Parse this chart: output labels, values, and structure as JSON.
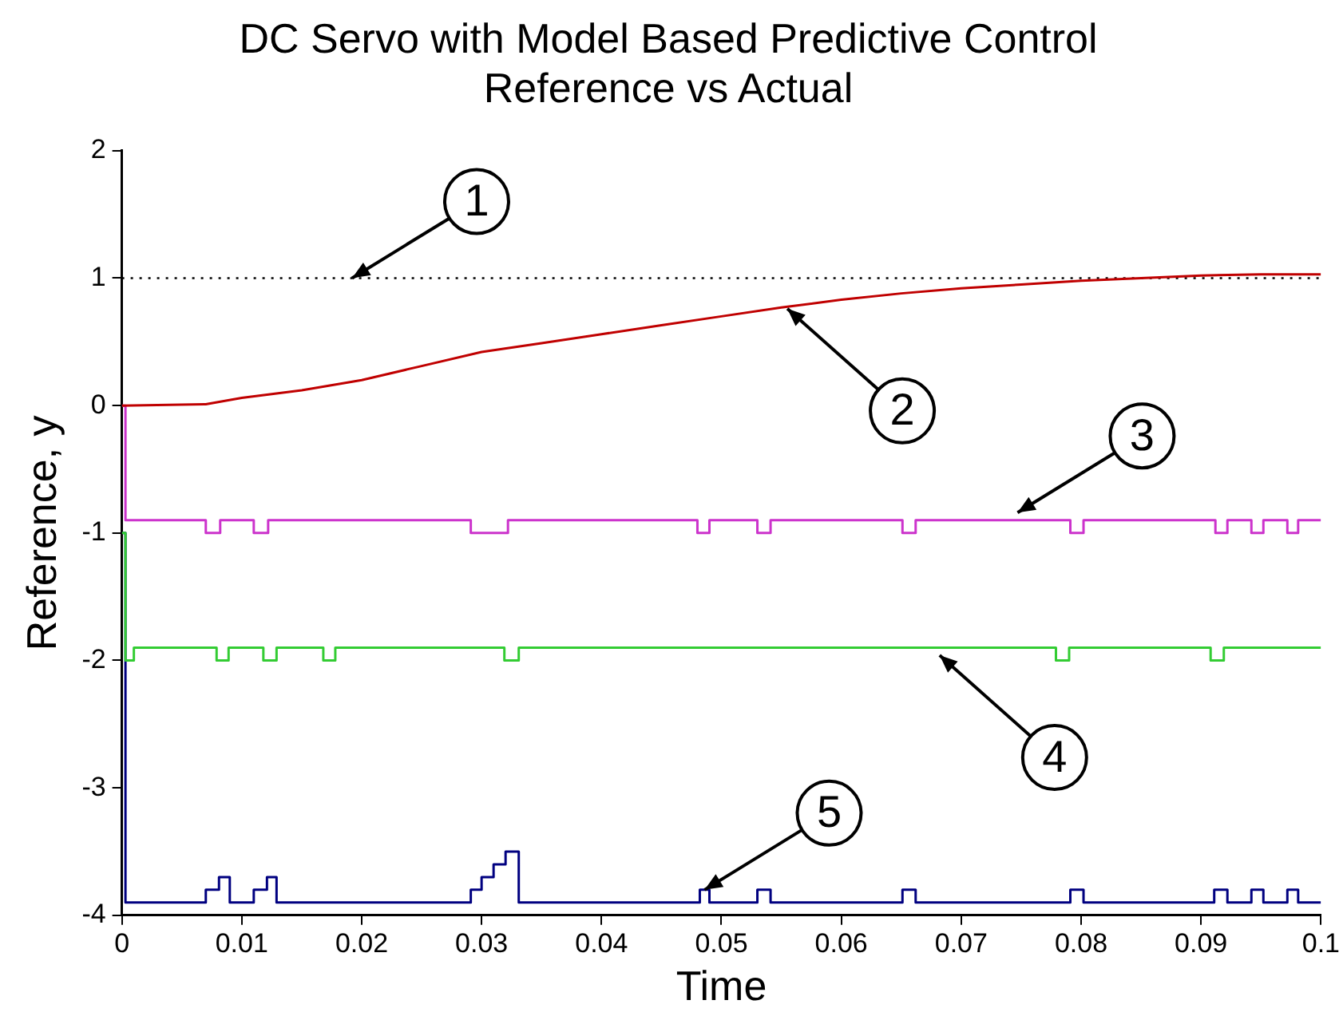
{
  "chart_data": {
    "type": "line",
    "title": "DC Servo with Model Based Predictive Control",
    "subtitle": "Reference vs Actual",
    "xlabel": "Time",
    "ylabel": "Reference, y",
    "xlim": [
      0,
      0.1
    ],
    "xticks": [
      0,
      0.01,
      0.02,
      0.03,
      0.04,
      0.05,
      0.06,
      0.07,
      0.08,
      0.09,
      0.1
    ],
    "ylim": [
      -4,
      2
    ],
    "yticks": [
      -4,
      -3,
      -2,
      -1,
      0,
      1,
      2
    ],
    "grid": false,
    "legend": false,
    "ref_lines": [
      {
        "axis": "y",
        "value": 1,
        "color": "#000000",
        "line_style": "dotted"
      }
    ],
    "series": [
      {
        "color": "#c00000",
        "x": [
          0,
          0.007,
          0.01,
          0.015,
          0.02,
          0.025,
          0.03,
          0.035,
          0.04,
          0.045,
          0.05,
          0.055,
          0.06,
          0.065,
          0.07,
          0.075,
          0.08,
          0.085,
          0.09,
          0.095,
          0.1
        ],
        "values": [
          0,
          0.01,
          0.06,
          0.12,
          0.2,
          0.31,
          0.42,
          0.49,
          0.56,
          0.63,
          0.7,
          0.77,
          0.83,
          0.88,
          0.92,
          0.95,
          0.98,
          1.0,
          1.02,
          1.03,
          1.03
        ]
      },
      {
        "type": "step",
        "color": "#cc33cc",
        "x": [
          0,
          0.0003,
          0.007,
          0.0082,
          0.011,
          0.0122,
          0.0291,
          0.0322,
          0.048,
          0.049,
          0.053,
          0.0541,
          0.0651,
          0.0662,
          0.0791,
          0.0802,
          0.0912,
          0.0922,
          0.0942,
          0.0952,
          0.0972,
          0.0981,
          0.1
        ],
        "values": [
          0,
          -0.9,
          -1,
          -0.9,
          -1,
          -0.9,
          -1,
          -0.9,
          -1,
          -0.9,
          -1,
          -0.9,
          -1,
          -0.9,
          -1,
          -0.9,
          -1,
          -0.9,
          -1,
          -0.9,
          -1,
          -0.9,
          -0.9
        ]
      },
      {
        "type": "step",
        "color": "#33cc33",
        "x": [
          0,
          0.0003,
          0.001,
          0.0079,
          0.0089,
          0.0118,
          0.0129,
          0.0168,
          0.0178,
          0.0319,
          0.0331,
          0.0779,
          0.079,
          0.0908,
          0.0919,
          0.1
        ],
        "values": [
          -1,
          -2,
          -1.9,
          -2,
          -1.9,
          -2,
          -1.9,
          -2,
          -1.9,
          -2,
          -1.9,
          -2,
          -1.9,
          -2,
          -1.9,
          -1.9
        ]
      },
      {
        "type": "step",
        "color": "#000080",
        "x": [
          0,
          0.0003,
          0.007,
          0.0081,
          0.009,
          0.011,
          0.0121,
          0.0129,
          0.0291,
          0.03,
          0.031,
          0.032,
          0.0331,
          0.0482,
          0.049,
          0.053,
          0.0541,
          0.0651,
          0.0662,
          0.0791,
          0.0802,
          0.0911,
          0.0922,
          0.0942,
          0.0952,
          0.0972,
          0.0981,
          0.1
        ],
        "values": [
          -1,
          -3.9,
          -3.8,
          -3.7,
          -3.9,
          -3.8,
          -3.7,
          -3.9,
          -3.8,
          -3.7,
          -3.6,
          -3.5,
          -3.9,
          -3.8,
          -3.9,
          -3.8,
          -3.9,
          -3.8,
          -3.9,
          -3.8,
          -3.9,
          -3.8,
          -3.9,
          -3.8,
          -3.9,
          -3.8,
          -3.9,
          -3.9
        ]
      }
    ],
    "annotations": [
      {
        "text": "1",
        "x": 0.0192,
        "y": 1
      },
      {
        "text": "2",
        "x": 0.0555,
        "y": 0.76
      },
      {
        "text": "3",
        "x": 0.0747,
        "y": -0.84
      },
      {
        "text": "4",
        "x": 0.0682,
        "y": -1.96
      },
      {
        "text": "5",
        "x": 0.0486,
        "y": -3.8
      }
    ]
  }
}
